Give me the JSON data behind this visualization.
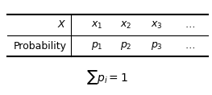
{
  "col0_row0": "$X$",
  "col0_row1": "Probability",
  "cols_row0": [
    "$x_1$",
    "$x_2$",
    "$x_3$",
    "$\\ldots$"
  ],
  "cols_row1": [
    "$p_1$",
    "$p_2$",
    "$p_3$",
    "$\\ldots$"
  ],
  "formula": "$\\sum p_i = 1$",
  "bg_color": "#ffffff",
  "text_color": "#000000",
  "table_edge_color": "#000000",
  "font_size": 9,
  "formula_font_size": 10
}
